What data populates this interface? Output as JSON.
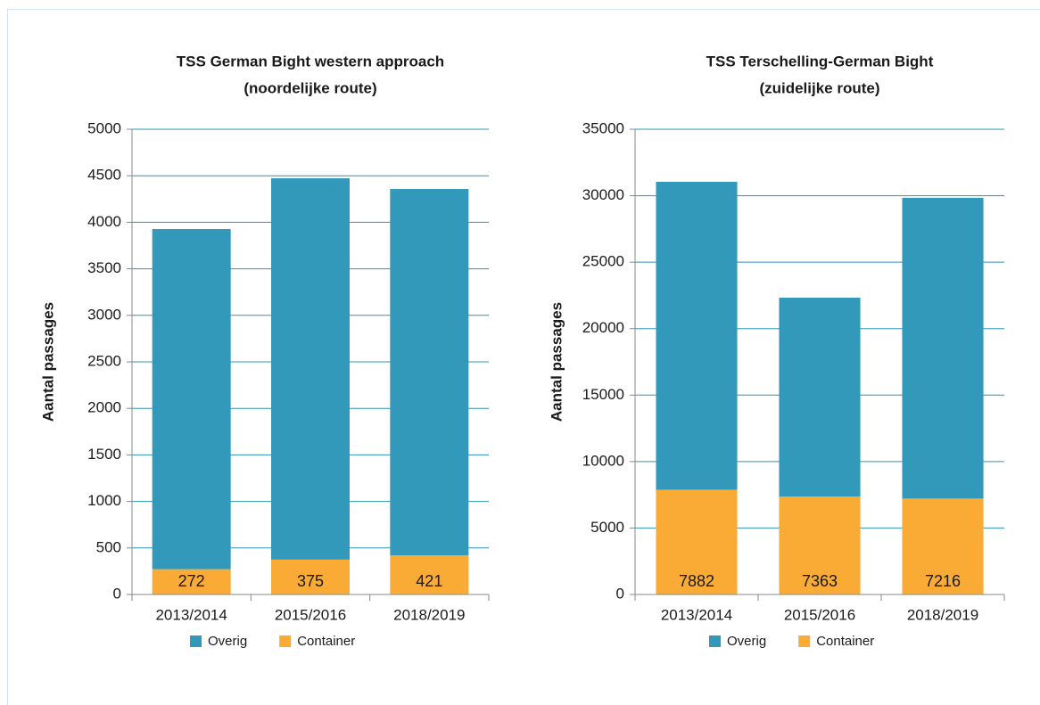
{
  "chart_data": [
    {
      "type": "stacked_bar",
      "title": "TSS German Bight western approach",
      "subtitle": "(noordelijke route)",
      "y_label": "Aantal passages",
      "categories": [
        "2013/2014",
        "2015/2016",
        "2018/2019"
      ],
      "series": [
        {
          "name": "Container",
          "color": "#f9ab35",
          "values": [
            272,
            375,
            421
          ],
          "data_labels": true
        },
        {
          "name": "Overig",
          "color": "#3399bb",
          "values": [
            3655,
            4098,
            3937
          ]
        }
      ],
      "legend_order": [
        "Overig",
        "Container"
      ],
      "ylim": [
        0,
        5000
      ],
      "yticks": [
        0,
        500,
        1000,
        1500,
        2000,
        2500,
        3000,
        3500,
        4000,
        4500,
        5000
      ],
      "grid": true
    },
    {
      "type": "stacked_bar",
      "title": "TSS Terschelling-German Bight",
      "subtitle": "(zuidelijke route)",
      "y_label": "Aantal passages",
      "categories": [
        "2013/2014",
        "2015/2016",
        "2018/2019"
      ],
      "series": [
        {
          "name": "Container",
          "color": "#f9ab35",
          "values": [
            7882,
            7363,
            7216
          ],
          "data_labels": true
        },
        {
          "name": "Overig",
          "color": "#3399bb",
          "values": [
            23163,
            14965,
            22622
          ]
        }
      ],
      "legend_order": [
        "Overig",
        "Container"
      ],
      "ylim": [
        0,
        35000
      ],
      "yticks": [
        0,
        5000,
        10000,
        15000,
        20000,
        25000,
        30000,
        35000
      ],
      "grid": true
    }
  ]
}
